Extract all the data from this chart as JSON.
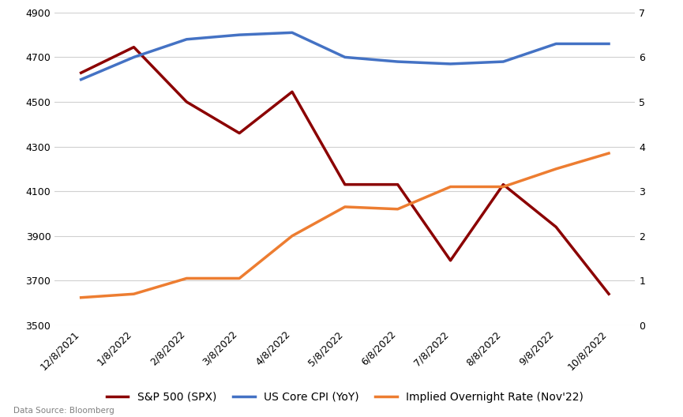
{
  "x_labels": [
    "12/8/2021",
    "1/8/2022",
    "2/8/2022",
    "3/8/2022",
    "4/8/2022",
    "5/8/2022",
    "6/8/2022",
    "7/8/2022",
    "8/8/2022",
    "9/8/2022",
    "10/8/2022"
  ],
  "spx": [
    4630,
    4745,
    4500,
    4360,
    4545,
    4130,
    4130,
    3790,
    4130,
    3940,
    3640
  ],
  "cpi": [
    5.5,
    6.0,
    6.4,
    6.5,
    6.55,
    6.0,
    5.9,
    5.85,
    5.9,
    6.3,
    6.3
  ],
  "implied_rate": [
    0.62,
    0.7,
    1.05,
    1.05,
    2.0,
    2.65,
    2.6,
    3.1,
    3.1,
    3.5,
    3.85
  ],
  "spx_color": "#8B0000",
  "cpi_color": "#4472C4",
  "rate_color": "#ED7D31",
  "background_color": "#FFFFFF",
  "grid_color": "#D0D0D0",
  "ylim_left": [
    3500,
    4900
  ],
  "ylim_right": [
    0,
    7
  ],
  "left_yticks": [
    3500,
    3700,
    3900,
    4100,
    4300,
    4500,
    4700,
    4900
  ],
  "right_yticks": [
    0,
    1,
    2,
    3,
    4,
    5,
    6,
    7
  ],
  "legend_labels": [
    "S&P 500 (SPX)",
    "US Core CPI (YoY)",
    "Implied Overnight Rate (Nov'22)"
  ],
  "data_source": "Data Source: Bloomberg",
  "line_width": 2.5,
  "tick_fontsize": 9,
  "legend_fontsize": 10,
  "source_fontsize": 7.5
}
